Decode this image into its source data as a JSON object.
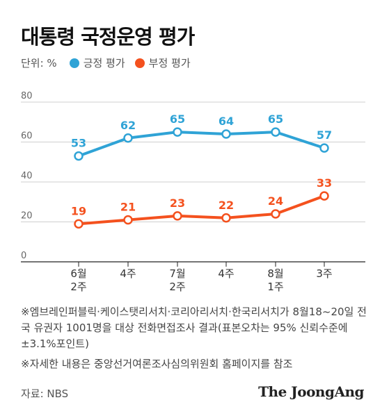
{
  "title": "대통령 국정운영 평가",
  "legend": {
    "unit": "단위: %",
    "items": [
      {
        "label": "긍정 평가",
        "color": "#2fa3d6"
      },
      {
        "label": "부정 평가",
        "color": "#f4511e"
      }
    ]
  },
  "chart_data": {
    "type": "line",
    "categories": [
      "6월\n2주",
      "4주",
      "7월\n2주",
      "4주",
      "8월\n1주",
      "3주"
    ],
    "series": [
      {
        "name": "긍정 평가",
        "color": "#2fa3d6",
        "values": [
          53,
          62,
          65,
          64,
          65,
          57
        ]
      },
      {
        "name": "부정 평가",
        "color": "#f4511e",
        "values": [
          19,
          21,
          23,
          22,
          24,
          33
        ]
      }
    ],
    "yticks": [
      0,
      20,
      40,
      60,
      80
    ],
    "ylim": [
      0,
      80
    ],
    "grid": true
  },
  "notes": [
    "※엠브레인퍼블릭·케이스탯리서치·코리아리서치·한국리서치가 8월18~20일 전국 유권자 1001명을 대상 전화면접조사 결과(표본오차는 95% 신뢰수준에 ±3.1%포인트)",
    "※자세한 내용은 중앙선거여론조사심의위원회 홈페이지를 참조"
  ],
  "source": "자료: NBS",
  "brand": "The JoongAng"
}
